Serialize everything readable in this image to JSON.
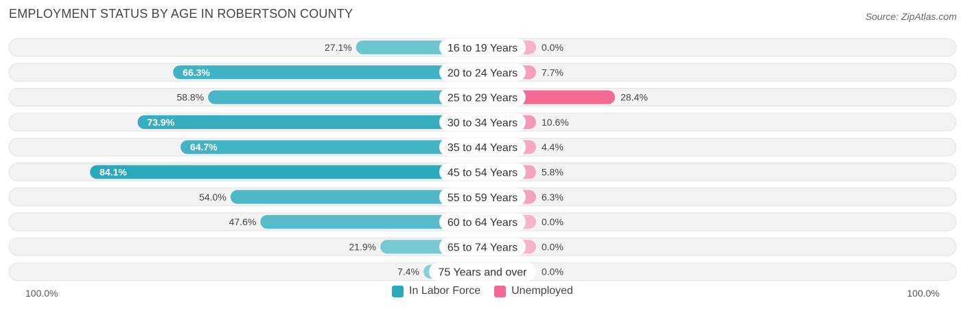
{
  "header": {
    "title": "EMPLOYMENT STATUS BY AGE IN ROBERTSON COUNTY",
    "source": "Source: ZipAtlas.com"
  },
  "axis": {
    "left_label": "100.0%",
    "right_label": "100.0%"
  },
  "legend": [
    {
      "label": "In Labor Force",
      "color": "#2aa9bc"
    },
    {
      "label": "Unemployed",
      "color": "#f06a94"
    }
  ],
  "chart_data": {
    "type": "bar",
    "orientation": "horizontal-diverging",
    "title": "EMPLOYMENT STATUS BY AGE IN ROBERTSON COUNTY",
    "categories": [
      "16 to 19 Years",
      "20 to 24 Years",
      "25 to 29 Years",
      "30 to 34 Years",
      "35 to 44 Years",
      "45 to 54 Years",
      "55 to 59 Years",
      "60 to 64 Years",
      "65 to 74 Years",
      "75 Years and over"
    ],
    "series": [
      {
        "name": "In Labor Force",
        "values": [
          27.1,
          66.3,
          58.8,
          73.9,
          64.7,
          84.1,
          54.0,
          47.6,
          21.9,
          7.4
        ],
        "labels": [
          "27.1%",
          "66.3%",
          "58.8%",
          "73.9%",
          "64.7%",
          "84.1%",
          "54.0%",
          "47.6%",
          "21.9%",
          "7.4%"
        ]
      },
      {
        "name": "Unemployed",
        "values": [
          0.0,
          7.7,
          28.4,
          10.6,
          4.4,
          5.8,
          6.3,
          0.0,
          0.0,
          0.0
        ],
        "labels": [
          "0.0%",
          "7.7%",
          "28.4%",
          "10.6%",
          "4.4%",
          "5.8%",
          "6.3%",
          "0.0%",
          "0.0%",
          "0.0%"
        ]
      }
    ],
    "xlim": [
      -100,
      100
    ],
    "xlabel_left": "100.0%",
    "xlabel_right": "100.0%"
  }
}
